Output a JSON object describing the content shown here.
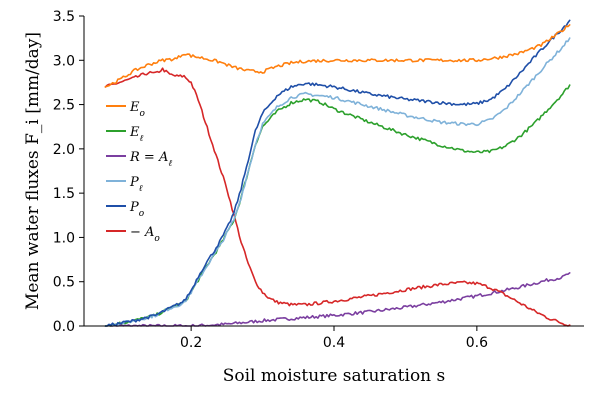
{
  "chart_data": {
    "type": "line",
    "xlabel": "Soil moisture saturation s",
    "ylabel": "Mean water fluxes F_i [mm/day]",
    "xlim": [
      0.05,
      0.75
    ],
    "ylim": [
      0,
      3.5
    ],
    "xticks": [
      "0.2",
      "0.4",
      "0.6"
    ],
    "xtick_values": [
      0.2,
      0.4,
      0.6
    ],
    "yticks": [
      "0.0",
      "0.5",
      "1.0",
      "1.5",
      "2.0",
      "2.5",
      "3.0",
      "3.5"
    ],
    "ytick_values": [
      0,
      0.5,
      1.0,
      1.5,
      2.0,
      2.5,
      3.0,
      3.5
    ],
    "grid": false,
    "legend_position": "left",
    "series": [
      {
        "name": "E_o",
        "label_main": "E",
        "label_sub": "o",
        "color": "#ff7f0e",
        "x": [
          0.08,
          0.1,
          0.12,
          0.14,
          0.16,
          0.18,
          0.19,
          0.2,
          0.22,
          0.24,
          0.26,
          0.28,
          0.3,
          0.32,
          0.34,
          0.36,
          0.4,
          0.45,
          0.5,
          0.55,
          0.6,
          0.63,
          0.66,
          0.69,
          0.71,
          0.73
        ],
        "y": [
          2.7,
          2.78,
          2.88,
          2.95,
          3.0,
          3.02,
          3.08,
          3.05,
          3.02,
          2.98,
          2.92,
          2.88,
          2.87,
          2.93,
          2.97,
          2.99,
          3.0,
          3.0,
          3.0,
          3.0,
          3.0,
          3.03,
          3.08,
          3.17,
          3.28,
          3.4
        ]
      },
      {
        "name": "E_ℓ",
        "label_main": "E",
        "label_sub": "ℓ",
        "color": "#2ca02c",
        "x": [
          0.08,
          0.12,
          0.15,
          0.17,
          0.19,
          0.2,
          0.21,
          0.22,
          0.23,
          0.24,
          0.25,
          0.26,
          0.27,
          0.28,
          0.29,
          0.3,
          0.32,
          0.34,
          0.36,
          0.38,
          0.4,
          0.45,
          0.5,
          0.55,
          0.58,
          0.6,
          0.62,
          0.64,
          0.66,
          0.68,
          0.7,
          0.72,
          0.73
        ],
        "y": [
          0.0,
          0.06,
          0.12,
          0.2,
          0.26,
          0.38,
          0.52,
          0.65,
          0.78,
          0.9,
          1.05,
          1.2,
          1.45,
          1.75,
          2.05,
          2.25,
          2.42,
          2.52,
          2.56,
          2.53,
          2.45,
          2.3,
          2.16,
          2.04,
          1.98,
          1.96,
          1.97,
          2.03,
          2.14,
          2.28,
          2.45,
          2.62,
          2.72
        ]
      },
      {
        "name": "R = A_ℓ",
        "label_main": "R = A",
        "label_sub": "ℓ",
        "color": "#7b3fa0",
        "x": [
          0.08,
          0.15,
          0.2,
          0.25,
          0.3,
          0.35,
          0.4,
          0.45,
          0.5,
          0.55,
          0.6,
          0.65,
          0.7,
          0.72,
          0.73
        ],
        "y": [
          0.0,
          0.0,
          0.0,
          0.02,
          0.06,
          0.09,
          0.12,
          0.16,
          0.21,
          0.27,
          0.34,
          0.42,
          0.52,
          0.55,
          0.6
        ]
      },
      {
        "name": "P_ℓ",
        "label_main": "P",
        "label_sub": "ℓ",
        "color": "#7fb2d9",
        "x": [
          0.08,
          0.12,
          0.15,
          0.17,
          0.19,
          0.2,
          0.21,
          0.22,
          0.23,
          0.24,
          0.25,
          0.26,
          0.27,
          0.28,
          0.29,
          0.3,
          0.32,
          0.34,
          0.36,
          0.4,
          0.45,
          0.5,
          0.55,
          0.58,
          0.6,
          0.62,
          0.64,
          0.66,
          0.68,
          0.7,
          0.72,
          0.73
        ],
        "y": [
          0.0,
          0.06,
          0.12,
          0.2,
          0.26,
          0.38,
          0.52,
          0.65,
          0.78,
          0.9,
          1.05,
          1.2,
          1.45,
          1.75,
          2.05,
          2.28,
          2.47,
          2.58,
          2.62,
          2.58,
          2.48,
          2.38,
          2.3,
          2.28,
          2.28,
          2.33,
          2.45,
          2.62,
          2.8,
          2.98,
          3.15,
          3.25
        ]
      },
      {
        "name": "P_o",
        "label_main": "P",
        "label_sub": "o",
        "color": "#1f4fa8",
        "x": [
          0.08,
          0.12,
          0.15,
          0.17,
          0.19,
          0.2,
          0.21,
          0.22,
          0.23,
          0.24,
          0.25,
          0.26,
          0.27,
          0.28,
          0.29,
          0.3,
          0.32,
          0.34,
          0.36,
          0.4,
          0.45,
          0.5,
          0.55,
          0.58,
          0.6,
          0.62,
          0.64,
          0.66,
          0.68,
          0.7,
          0.72,
          0.73
        ],
        "y": [
          0.0,
          0.06,
          0.12,
          0.2,
          0.28,
          0.4,
          0.56,
          0.7,
          0.82,
          0.95,
          1.1,
          1.28,
          1.55,
          1.88,
          2.2,
          2.4,
          2.6,
          2.7,
          2.74,
          2.7,
          2.62,
          2.56,
          2.52,
          2.5,
          2.51,
          2.56,
          2.68,
          2.85,
          3.03,
          3.2,
          3.36,
          3.45
        ]
      },
      {
        "name": "− A_o",
        "label_main": "− A",
        "label_sub": "o",
        "color": "#d62728",
        "x": [
          0.08,
          0.1,
          0.12,
          0.14,
          0.15,
          0.16,
          0.17,
          0.18,
          0.19,
          0.2,
          0.21,
          0.22,
          0.23,
          0.24,
          0.25,
          0.26,
          0.27,
          0.28,
          0.29,
          0.3,
          0.31,
          0.32,
          0.34,
          0.36,
          0.4,
          0.45,
          0.5,
          0.55,
          0.58,
          0.6,
          0.62,
          0.64,
          0.66,
          0.68,
          0.7,
          0.72,
          0.73
        ],
        "y": [
          2.7,
          2.75,
          2.8,
          2.86,
          2.85,
          2.9,
          2.84,
          2.82,
          2.82,
          2.75,
          2.55,
          2.3,
          2.05,
          1.8,
          1.55,
          1.25,
          0.95,
          0.7,
          0.5,
          0.38,
          0.31,
          0.27,
          0.24,
          0.24,
          0.28,
          0.34,
          0.41,
          0.47,
          0.49,
          0.48,
          0.43,
          0.35,
          0.26,
          0.17,
          0.09,
          0.03,
          0.01
        ]
      }
    ]
  }
}
